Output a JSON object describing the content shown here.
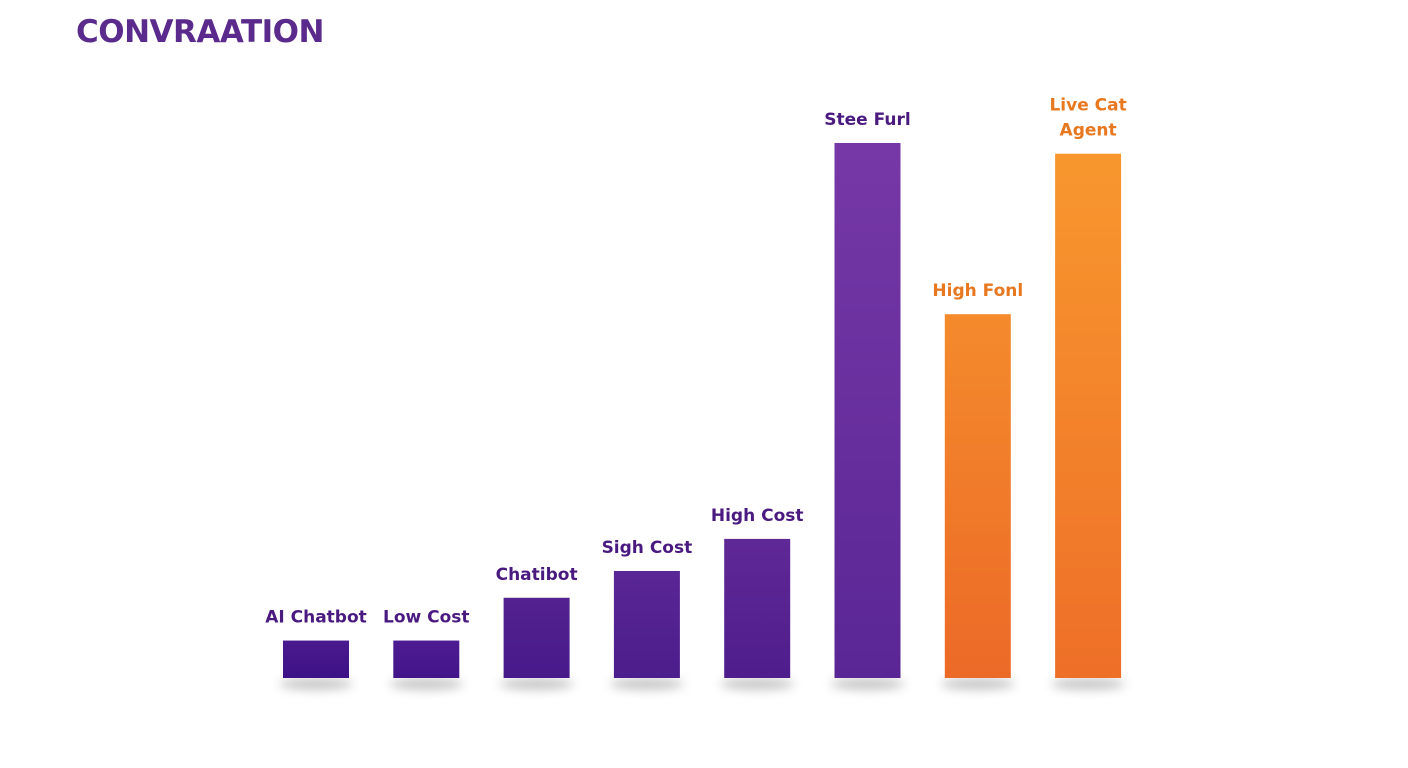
{
  "chart_data": {
    "type": "bar",
    "title": "CONVRAATION",
    "xlabel": "",
    "ylabel": "",
    "ylim": [
      0,
      100
    ],
    "categories": [
      "AI Chatbot",
      "Low Cost",
      "Chatibot",
      "Sigh Cost",
      "High Cost",
      "Stee Furl",
      "High Fonl",
      "Live Cat Agent"
    ],
    "values": [
      7,
      7,
      15,
      20,
      26,
      100,
      68,
      98
    ],
    "bar_colors": [
      [
        "#4a1a8e",
        "#3d1287"
      ],
      [
        "#4e1c92",
        "#42148a"
      ],
      [
        "#53228f",
        "#47198a"
      ],
      [
        "#5a2695",
        "#4c1d8c"
      ],
      [
        "#5f2896",
        "#4f1d8c"
      ],
      [
        "#7638a6",
        "#5a2695"
      ],
      [
        "#f48a2c",
        "#ec6a27"
      ],
      [
        "#f8972e",
        "#ee6f28"
      ]
    ],
    "label_colors": [
      "#4a1a80",
      "#4a1a80",
      "#4a1a80",
      "#4a1a80",
      "#4a1a80",
      "#4a1a80",
      "#e8781f",
      "#e8781f"
    ],
    "grid": false,
    "legend": "none"
  },
  "colors": {
    "title": "#5a2a8c",
    "purple": "#5a2695",
    "orange": "#f0782a",
    "background": "#ffffff"
  }
}
